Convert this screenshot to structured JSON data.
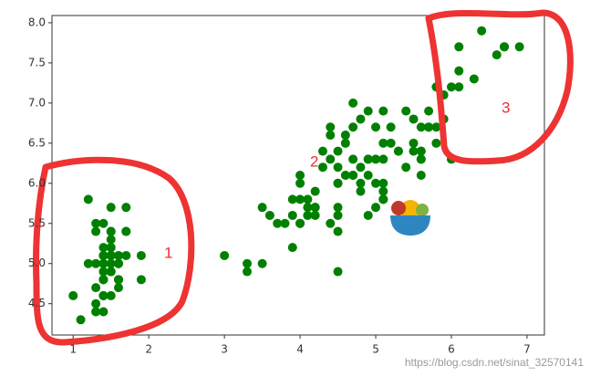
{
  "chart_data": {
    "type": "scatter",
    "color": "#008000",
    "xlim": [
      0.72,
      7.23
    ],
    "ylim": [
      4.11,
      8.09
    ],
    "xticks": [
      1,
      2,
      3,
      4,
      5,
      6,
      7
    ],
    "yticks": [
      4.5,
      {
        "value": 5,
        "label": "5.0"
      },
      5.5,
      {
        "value": 6,
        "label": "6.0"
      },
      6.5,
      {
        "value": 7,
        "label": "7.0"
      },
      7.5,
      {
        "value": 8,
        "label": "8.0"
      }
    ],
    "grid": false,
    "annotations": [
      "1",
      "2",
      "3"
    ],
    "watermark": "https://blog.csdn.net/sinat_32570141",
    "x": [
      1.4,
      1.4,
      1.3,
      1.5,
      1.4,
      1.7,
      1.4,
      1.5,
      1.4,
      1.5,
      1.5,
      1.6,
      1.4,
      1.1,
      1.2,
      1.5,
      1.3,
      1.4,
      1.7,
      1.5,
      1.7,
      1.5,
      1.0,
      1.7,
      1.9,
      1.6,
      1.6,
      1.5,
      1.4,
      1.6,
      1.6,
      1.5,
      1.5,
      1.4,
      1.5,
      1.2,
      1.3,
      1.5,
      1.3,
      1.5,
      1.3,
      1.3,
      1.3,
      1.6,
      1.9,
      1.4,
      1.6,
      1.4,
      1.5,
      1.4,
      4.7,
      4.5,
      4.9,
      4.0,
      4.6,
      4.5,
      4.7,
      3.3,
      4.6,
      3.9,
      3.5,
      4.2,
      4.0,
      4.7,
      3.6,
      4.4,
      4.5,
      4.1,
      4.5,
      3.9,
      4.8,
      4.0,
      4.9,
      4.7,
      4.3,
      4.4,
      4.8,
      5.0,
      4.5,
      3.5,
      3.8,
      3.7,
      3.9,
      5.1,
      4.5,
      4.5,
      4.7,
      4.4,
      4.1,
      4.0,
      4.4,
      4.6,
      4.0,
      3.3,
      4.2,
      4.2,
      4.2,
      4.3,
      3.0,
      4.1,
      6.0,
      5.1,
      5.9,
      5.6,
      5.8,
      6.6,
      4.5,
      6.3,
      5.8,
      6.1,
      5.1,
      5.3,
      5.5,
      5.0,
      5.1,
      5.3,
      5.5,
      6.7,
      6.9,
      5.0,
      5.7,
      4.9,
      6.7,
      4.9,
      5.7,
      6.0,
      4.8,
      4.9,
      5.6,
      5.8,
      6.1,
      6.4,
      5.6,
      5.1,
      5.6,
      6.1,
      5.6,
      5.5,
      4.8,
      5.4,
      5.6,
      5.1,
      5.1,
      5.9,
      5.7,
      5.2,
      5.0,
      5.2,
      5.4,
      5.1
    ],
    "series": [
      {
        "color": "#008000",
        "values": [
          5.1,
          4.9,
          4.7,
          4.6,
          5.0,
          5.4,
          4.6,
          5.0,
          4.4,
          4.9,
          5.4,
          4.8,
          4.8,
          4.3,
          5.8,
          5.7,
          5.4,
          5.1,
          5.7,
          5.1,
          5.4,
          5.1,
          4.6,
          5.1,
          4.8,
          5.0,
          5.0,
          5.2,
          5.2,
          4.7,
          4.8,
          5.4,
          5.2,
          5.5,
          4.9,
          5.0,
          5.5,
          4.9,
          4.4,
          5.1,
          5.0,
          4.5,
          4.4,
          5.0,
          5.1,
          4.8,
          5.1,
          4.6,
          5.3,
          5.0,
          7.0,
          6.4,
          6.9,
          5.5,
          6.5,
          5.7,
          6.3,
          4.9,
          6.6,
          5.2,
          5.0,
          5.9,
          6.0,
          6.1,
          5.6,
          6.7,
          5.6,
          5.8,
          6.2,
          5.6,
          5.9,
          6.1,
          6.3,
          6.1,
          6.4,
          6.6,
          6.8,
          6.7,
          6.0,
          5.7,
          5.5,
          5.5,
          5.8,
          6.0,
          5.4,
          6.0,
          6.7,
          6.3,
          5.6,
          5.5,
          5.5,
          6.1,
          5.8,
          5.0,
          5.6,
          5.7,
          5.7,
          6.2,
          5.1,
          5.7,
          6.3,
          5.8,
          7.1,
          6.3,
          6.5,
          7.6,
          4.9,
          7.3,
          6.7,
          7.2,
          6.5,
          6.4,
          6.8,
          5.7,
          5.8,
          6.4,
          6.5,
          7.7,
          7.7,
          6.0,
          6.9,
          5.6,
          7.7,
          6.3,
          6.7,
          7.2,
          6.2,
          6.1,
          6.4,
          7.2,
          7.4,
          7.9,
          6.4,
          6.3,
          6.1,
          7.7,
          6.3,
          6.4,
          6.0,
          6.9,
          6.7,
          6.9,
          5.8,
          6.8,
          6.7,
          6.7,
          6.3,
          6.5,
          6.2,
          5.9
        ]
      }
    ]
  }
}
